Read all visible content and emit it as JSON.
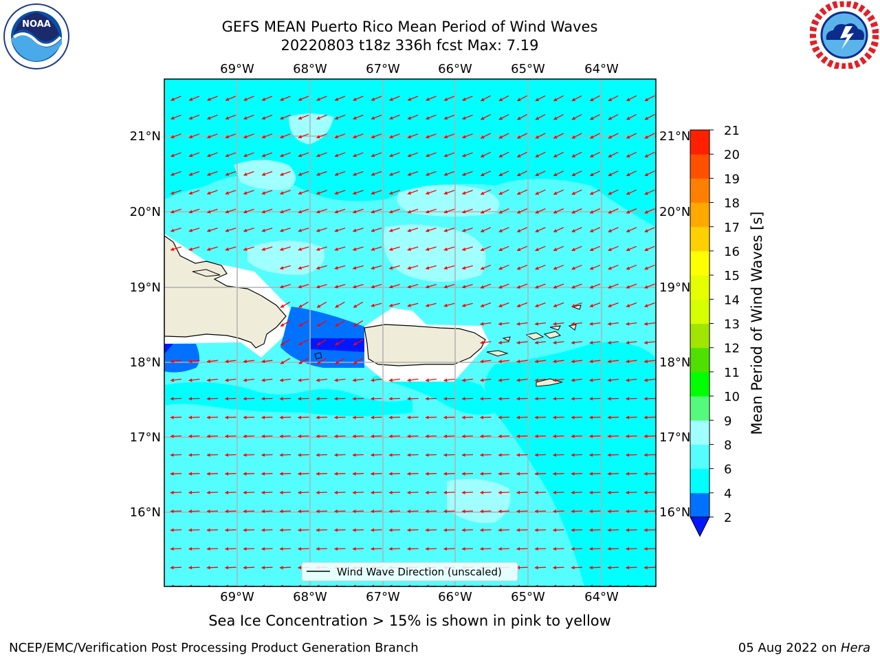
{
  "header": {
    "title_line1": "GEFS MEAN Puerto Rico Mean Period of Wind Waves",
    "title_line2": "20220803 t18z 336h fcst   Max: 7.19"
  },
  "logos": {
    "left": "noaa-logo",
    "left_text": "NOAA",
    "right": "national-weather-service-logo"
  },
  "map": {
    "lon_labels": [
      "69°W",
      "68°W",
      "67°W",
      "66°W",
      "65°W",
      "64°W"
    ],
    "lat_labels": [
      "21°N",
      "20°N",
      "19°N",
      "18°N",
      "17°N",
      "16°N"
    ],
    "legend_label": "Wind Wave Direction (unscaled)",
    "colors": {
      "ocean": "#54fefe",
      "ocean_light": "#a0ffff",
      "ocean_cyan": "#00ffff",
      "land": "#efedd9",
      "arrows": "#ff0000"
    }
  },
  "colorbar": {
    "label": "Mean Period of Wind Waves [s]",
    "ticks": [
      "2",
      "4",
      "6",
      "8",
      "9",
      "10",
      "11",
      "12",
      "13",
      "14",
      "15",
      "16",
      "17",
      "18",
      "19",
      "20",
      "21"
    ],
    "colors": [
      "#0018ff",
      "#0072ff",
      "#00ffff",
      "#54fefe",
      "#a0ffff",
      "#55fa7c",
      "#00ff00",
      "#50e000",
      "#a0e600",
      "#d6ff00",
      "#e6ff00",
      "#ffff00",
      "#ffd000",
      "#ffa800",
      "#ff8000",
      "#ff5000",
      "#ff2000",
      "#ff0000"
    ]
  },
  "caption": "Sea Ice Concentration > 15% is shown in pink to yellow",
  "footer": {
    "left": "NCEP/EMC/Verification Post Processing Product Generation Branch",
    "right_date": "05 Aug 2022 on ",
    "right_host": "Hera"
  }
}
